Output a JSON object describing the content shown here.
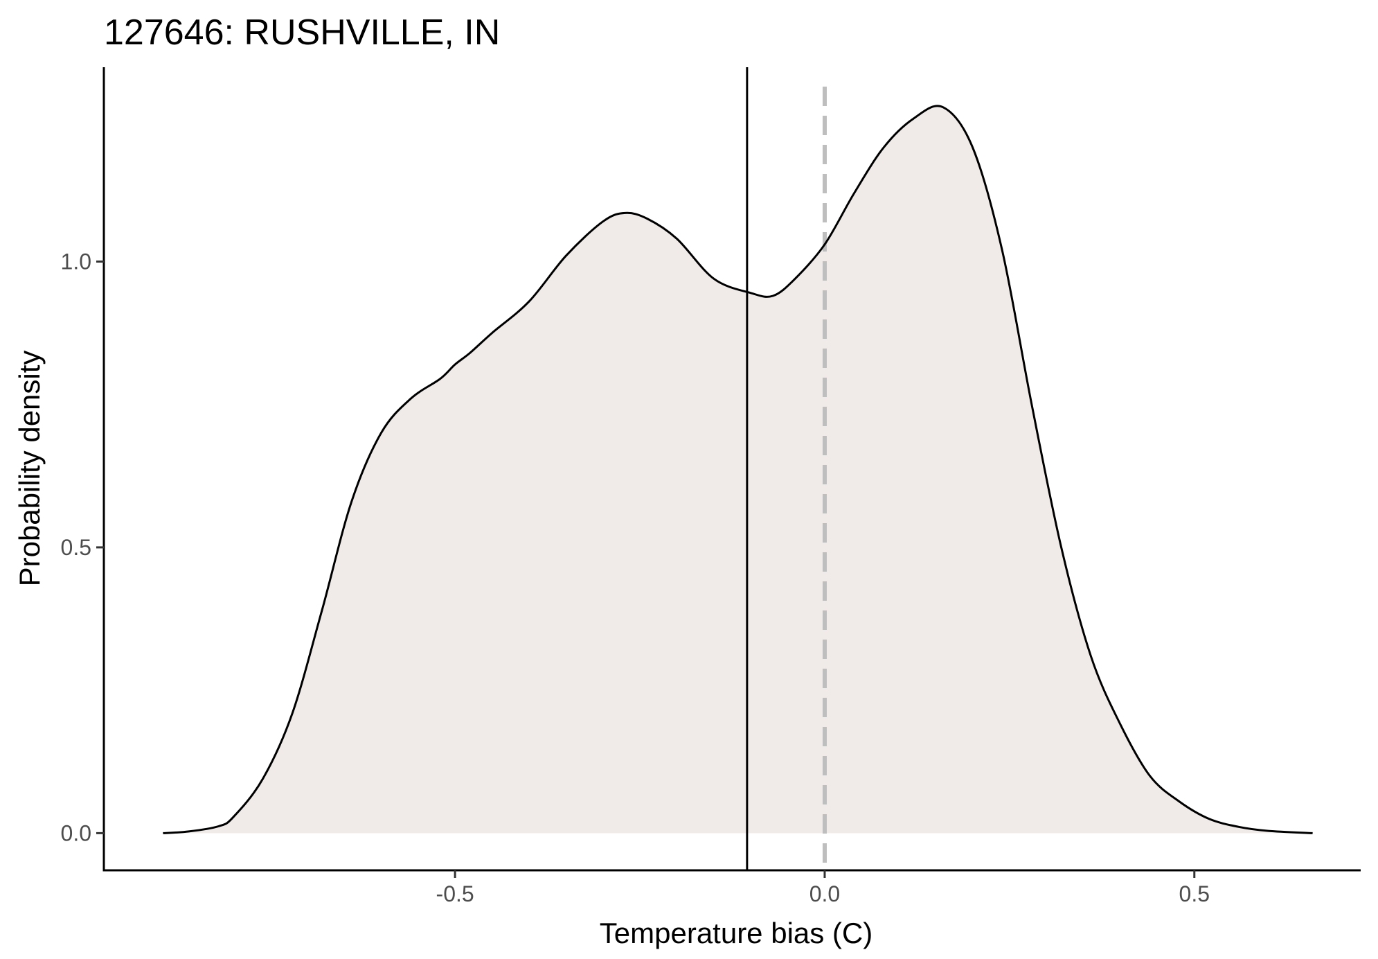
{
  "chart_data": {
    "type": "area",
    "title": "127646: RUSHVILLE, IN",
    "xlabel": "Temperature bias (C)",
    "ylabel": "Probability density",
    "xlim": [
      -0.975,
      0.725
    ],
    "ylim": [
      -0.065,
      1.34
    ],
    "x_ticks": [
      -0.5,
      0.0,
      0.5
    ],
    "x_tick_labels": [
      "-0.5",
      "0.0",
      "0.5"
    ],
    "y_ticks": [
      0.0,
      0.5,
      1.0
    ],
    "y_tick_labels": [
      "0.0",
      "0.5",
      "1.0"
    ],
    "grid": false,
    "legend": "none",
    "fill_color": "#f0eae8",
    "line_color": "#000000",
    "reference_lines": [
      {
        "kind": "mean",
        "x": -0.105,
        "style": "solid",
        "color": "#000000"
      },
      {
        "kind": "zero",
        "x": 0.0,
        "style": "dashed",
        "color": "#bebebe"
      }
    ],
    "series": [
      {
        "x": [
          -0.895,
          -0.86,
          -0.82,
          -0.8,
          -0.76,
          -0.72,
          -0.68,
          -0.64,
          -0.6,
          -0.56,
          -0.52,
          -0.5,
          -0.48,
          -0.45,
          -0.4,
          -0.35,
          -0.3,
          -0.27,
          -0.24,
          -0.2,
          -0.15,
          -0.1,
          -0.07,
          -0.04,
          0.0,
          0.04,
          0.08,
          0.12,
          0.16,
          0.2,
          0.24,
          0.28,
          0.32,
          0.36,
          0.4,
          0.44,
          0.48,
          0.52,
          0.56,
          0.6,
          0.66
        ],
        "y": [
          0.0,
          0.003,
          0.012,
          0.028,
          0.095,
          0.21,
          0.39,
          0.58,
          0.7,
          0.76,
          0.795,
          0.82,
          0.84,
          0.875,
          0.93,
          1.01,
          1.07,
          1.085,
          1.075,
          1.04,
          0.97,
          0.945,
          0.94,
          0.97,
          1.03,
          1.12,
          1.2,
          1.25,
          1.27,
          1.2,
          1.02,
          0.75,
          0.5,
          0.31,
          0.19,
          0.1,
          0.055,
          0.025,
          0.011,
          0.004,
          0.0
        ]
      }
    ]
  }
}
